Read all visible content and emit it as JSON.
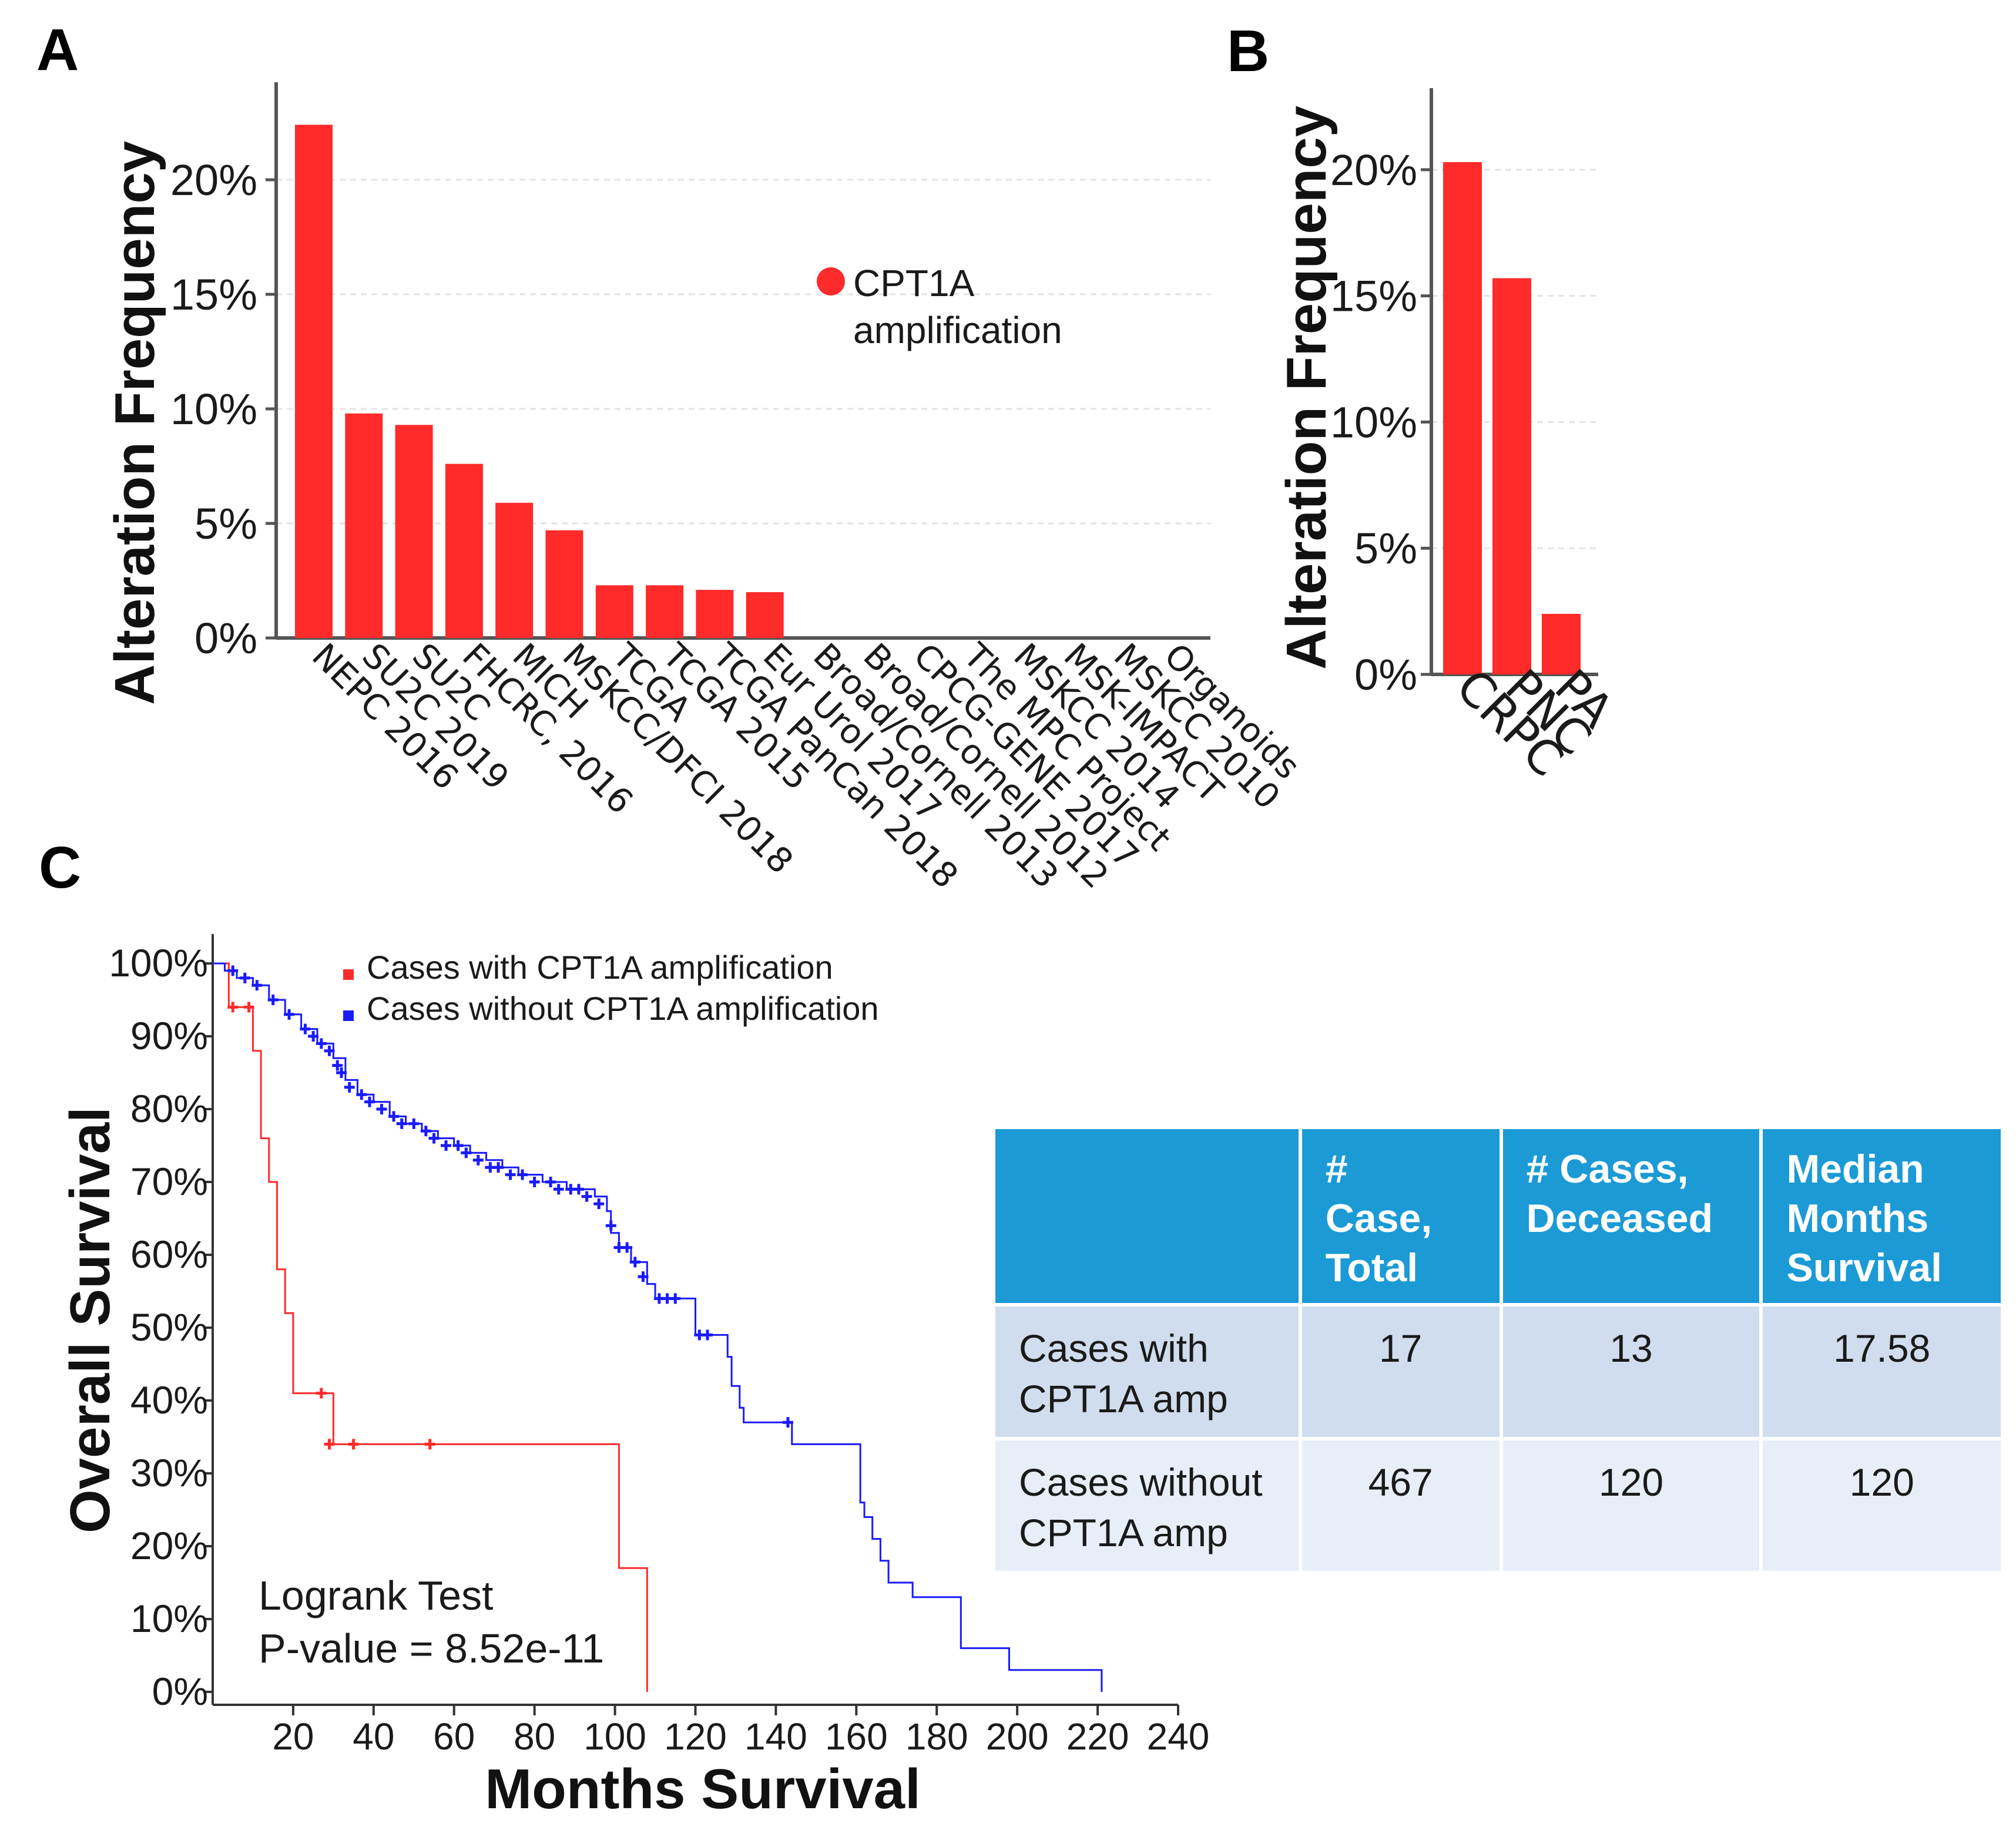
{
  "panels": {
    "a": "A",
    "b": "B",
    "c": "C"
  },
  "colors": {
    "amp": "#ff2a2a",
    "noamp": "#1a1aff",
    "header": "#1b9ad6"
  },
  "chart_data": [
    {
      "id": "A",
      "type": "bar",
      "ylabel": "Alteration Frequency",
      "yticks": [
        "0%",
        "5%",
        "10%",
        "15%",
        "20%"
      ],
      "ylim": [
        0,
        24
      ],
      "legend": {
        "label_line1": "CPT1A",
        "label_line2": "amplification"
      },
      "categories": [
        "NEPC 2016",
        "SU2C 2019",
        "SU2C",
        "FHCRC, 2016",
        "MICH",
        "MSKCC/DFCI 2018",
        "TCGA",
        "TCGA 2015",
        "TCGA PanCan 2018",
        "Eur Urol 2017",
        "Broad/Cornell 2013",
        "Broad/Cornell 2012",
        "CPCG-GENE 2017",
        "The MPC Project",
        "MSKCC 2014",
        "MSK-IMPACT",
        "MSKCC 2010",
        "Organoids"
      ],
      "values": [
        22.4,
        9.8,
        9.3,
        7.6,
        5.9,
        4.7,
        2.3,
        2.3,
        2.1,
        2.0,
        0,
        0,
        0,
        0,
        0,
        0,
        0,
        0
      ]
    },
    {
      "id": "B",
      "type": "bar",
      "ylabel": "Alteration Frequency",
      "yticks": [
        "0%",
        "5%",
        "10%",
        "15%",
        "20%"
      ],
      "ylim": [
        0,
        23
      ],
      "categories": [
        "CRPC",
        "PNC",
        "PA"
      ],
      "values": [
        20.3,
        15.7,
        2.4
      ]
    },
    {
      "id": "C",
      "type": "line",
      "xlabel": "Months Survival",
      "ylabel": "Overall Survival",
      "xticks": [
        "20",
        "40",
        "60",
        "80",
        "100",
        "120",
        "140",
        "160",
        "180",
        "200",
        "220",
        "240"
      ],
      "yticks": [
        "0%",
        "10%",
        "20%",
        "30%",
        "40%",
        "50%",
        "60%",
        "70%",
        "80%",
        "90%",
        "100%"
      ],
      "xlim": [
        0,
        240
      ],
      "ylim": [
        0,
        100
      ],
      "series": [
        {
          "name": "Cases with CPT1A amplification",
          "steps": [
            [
              0,
              100
            ],
            [
              4,
              94
            ],
            [
              10,
              88
            ],
            [
              12,
              76
            ],
            [
              14,
              70
            ],
            [
              16,
              58
            ],
            [
              18,
              52
            ],
            [
              20,
              41
            ],
            [
              28,
              41
            ],
            [
              30,
              34
            ],
            [
              97,
              34
            ],
            [
              101,
              17
            ],
            [
              108,
              17
            ],
            [
              108,
              0
            ]
          ],
          "censored": [
            [
              5,
              94
            ],
            [
              9,
              94
            ],
            [
              27,
              41
            ],
            [
              29,
              34
            ],
            [
              35,
              34
            ],
            [
              54,
              34
            ]
          ]
        },
        {
          "name": "Cases without CPT1A amplification",
          "steps": [
            [
              0,
              100
            ],
            [
              3,
              99
            ],
            [
              6,
              98
            ],
            [
              10,
              97
            ],
            [
              14,
              95
            ],
            [
              18,
              93
            ],
            [
              22,
              91
            ],
            [
              26,
              89
            ],
            [
              30,
              87
            ],
            [
              33,
              84
            ],
            [
              36,
              82
            ],
            [
              40,
              81
            ],
            [
              44,
              79
            ],
            [
              48,
              78
            ],
            [
              52,
              77
            ],
            [
              56,
              76
            ],
            [
              60,
              75
            ],
            [
              64,
              74
            ],
            [
              68,
              73
            ],
            [
              72,
              72
            ],
            [
              76,
              71
            ],
            [
              82,
              70
            ],
            [
              88,
              69
            ],
            [
              92,
              69
            ],
            [
              95,
              68
            ],
            [
              98,
              66
            ],
            [
              99,
              63
            ],
            [
              101,
              61
            ],
            [
              104,
              59
            ],
            [
              108,
              56
            ],
            [
              110,
              54
            ],
            [
              116,
              54
            ],
            [
              120,
              49
            ],
            [
              127,
              49
            ],
            [
              128,
              46
            ],
            [
              129,
              42
            ],
            [
              131,
              39
            ],
            [
              132,
              37
            ],
            [
              140,
              37
            ],
            [
              144,
              34
            ],
            [
              158,
              34
            ],
            [
              161,
              26
            ],
            [
              162,
              24
            ],
            [
              164,
              21
            ],
            [
              166,
              18
            ],
            [
              168,
              15
            ],
            [
              174,
              13
            ],
            [
              186,
              13
            ],
            [
              186,
              6
            ],
            [
              198,
              6
            ],
            [
              198,
              3
            ],
            [
              221,
              3
            ],
            [
              221,
              0
            ]
          ],
          "censored": [
            [
              5,
              99
            ],
            [
              8,
              98
            ],
            [
              11,
              97
            ],
            [
              15,
              95
            ],
            [
              19,
              93
            ],
            [
              23,
              91
            ],
            [
              25,
              90
            ],
            [
              27,
              89
            ],
            [
              29,
              88
            ],
            [
              31,
              86
            ],
            [
              32,
              85
            ],
            [
              34,
              83
            ],
            [
              37,
              82
            ],
            [
              39,
              81
            ],
            [
              42,
              80
            ],
            [
              45,
              79
            ],
            [
              47,
              78
            ],
            [
              50,
              78
            ],
            [
              53,
              77
            ],
            [
              55,
              76
            ],
            [
              58,
              75
            ],
            [
              61,
              75
            ],
            [
              63,
              74
            ],
            [
              66,
              73
            ],
            [
              69,
              72
            ],
            [
              71,
              72
            ],
            [
              74,
              71
            ],
            [
              77,
              71
            ],
            [
              80,
              70
            ],
            [
              84,
              70
            ],
            [
              86,
              69
            ],
            [
              89,
              69
            ],
            [
              91,
              69
            ],
            [
              93,
              68
            ],
            [
              96,
              67
            ],
            [
              99,
              64
            ],
            [
              101,
              61
            ],
            [
              103,
              61
            ],
            [
              105,
              59
            ],
            [
              107,
              57
            ],
            [
              111,
              54
            ],
            [
              113,
              54
            ],
            [
              115,
              54
            ],
            [
              121,
              49
            ],
            [
              123,
              49
            ],
            [
              143,
              37
            ]
          ]
        }
      ],
      "annotation_line1": "Logrank Test",
      "annotation_line2": "P-value = 8.52e-11"
    }
  ],
  "table": {
    "headers": [
      "",
      "# \nCase, \nTotal",
      "# Cases, \nDeceased",
      "Median \nMonths \nSurvival"
    ],
    "rows": [
      {
        "label": "Cases with \nCPT1A amp",
        "total": "17",
        "deceased": "13",
        "median": "17.58"
      },
      {
        "label": "Cases without \nCPT1A amp",
        "total": "467",
        "deceased": "120",
        "median": "120"
      }
    ]
  }
}
